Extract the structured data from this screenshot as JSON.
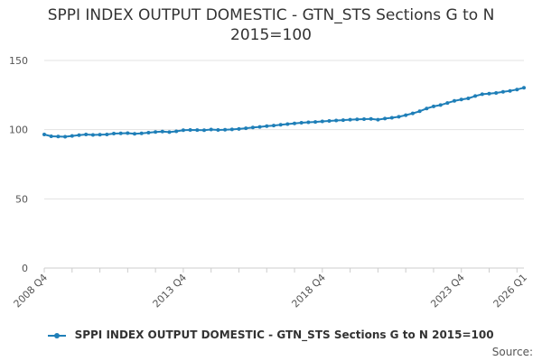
{
  "chart_data": {
    "type": "line",
    "title": "SPPI INDEX OUTPUT DOMESTIC - GTN_STS Sections G to N",
    "subtitle": "2015=100",
    "xlabel": "",
    "ylabel": "",
    "ylim": [
      0,
      150
    ],
    "yticks": [
      "0",
      "50",
      "100",
      "150"
    ],
    "xtick_labels": [
      "2008 Q4",
      "2013 Q4",
      "2018 Q4",
      "2023 Q4",
      "2026 Q1"
    ],
    "grid": true,
    "legend": "bottom",
    "color": "#1f7fb8",
    "x": [
      "2008 Q4",
      "2009 Q1",
      "2009 Q2",
      "2009 Q3",
      "2009 Q4",
      "2010 Q1",
      "2010 Q2",
      "2010 Q3",
      "2010 Q4",
      "2011 Q1",
      "2011 Q2",
      "2011 Q3",
      "2011 Q4",
      "2012 Q1",
      "2012 Q2",
      "2012 Q3",
      "2012 Q4",
      "2013 Q1",
      "2013 Q2",
      "2013 Q3",
      "2013 Q4",
      "2014 Q1",
      "2014 Q2",
      "2014 Q3",
      "2014 Q4",
      "2015 Q1",
      "2015 Q2",
      "2015 Q3",
      "2015 Q4",
      "2016 Q1",
      "2016 Q2",
      "2016 Q3",
      "2016 Q4",
      "2017 Q1",
      "2017 Q2",
      "2017 Q3",
      "2017 Q4",
      "2018 Q1",
      "2018 Q2",
      "2018 Q3",
      "2018 Q4",
      "2019 Q1",
      "2019 Q2",
      "2019 Q3",
      "2019 Q4",
      "2020 Q1",
      "2020 Q2",
      "2020 Q3",
      "2020 Q4",
      "2021 Q1",
      "2021 Q2",
      "2021 Q3",
      "2021 Q4",
      "2022 Q1",
      "2022 Q2",
      "2022 Q3",
      "2022 Q4",
      "2023 Q1",
      "2023 Q2",
      "2023 Q3",
      "2023 Q4",
      "2024 Q1",
      "2024 Q2",
      "2024 Q3",
      "2024 Q4",
      "2025 Q1",
      "2025 Q2",
      "2025 Q3",
      "2025 Q4",
      "2026 Q1"
    ],
    "series": [
      {
        "name": "SPPI INDEX OUTPUT DOMESTIC - GTN_STS Sections G to N 2015=100",
        "values": [
          96.5,
          95.2,
          95.0,
          94.9,
          95.5,
          96.0,
          96.5,
          96.2,
          96.3,
          96.5,
          97.2,
          97.3,
          97.5,
          97.0,
          97.4,
          97.8,
          98.3,
          98.6,
          98.2,
          98.8,
          99.6,
          99.8,
          99.7,
          99.6,
          100.1,
          99.8,
          99.9,
          100.2,
          100.5,
          101.0,
          101.6,
          102.0,
          102.5,
          103.0,
          103.5,
          104.0,
          104.5,
          105.0,
          105.3,
          105.6,
          106.0,
          106.3,
          106.6,
          106.9,
          107.2,
          107.4,
          107.6,
          107.8,
          107.2,
          108.0,
          108.6,
          109.3,
          110.5,
          111.8,
          113.3,
          115.3,
          116.8,
          117.8,
          119.3,
          120.8,
          121.8,
          122.6,
          124.3,
          125.6,
          126.0,
          126.5,
          127.3,
          128.0,
          129.0,
          130.3
        ]
      }
    ]
  },
  "legend": {
    "label": "SPPI INDEX OUTPUT DOMESTIC - GTN_STS Sections G to N 2015=100"
  },
  "source_label": "Source:"
}
